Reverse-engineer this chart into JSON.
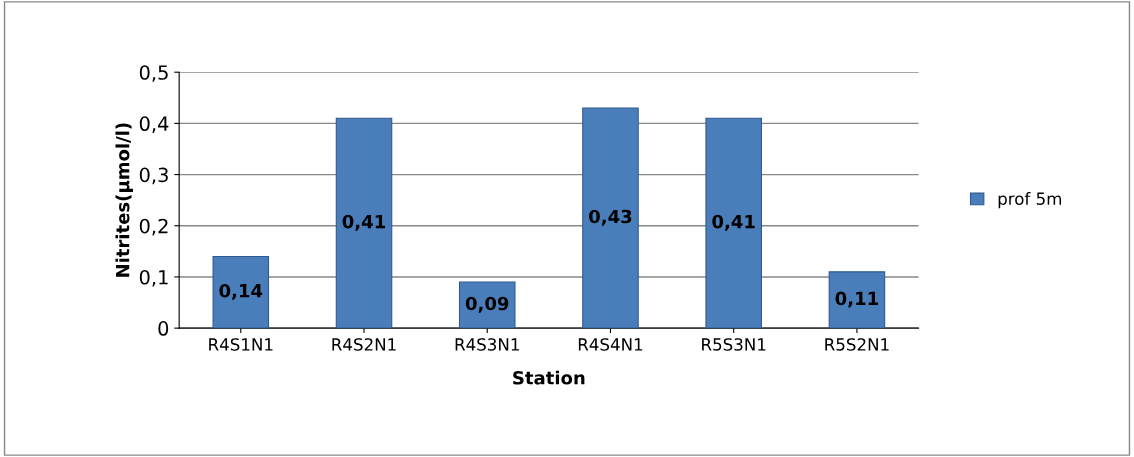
{
  "chart_data": {
    "type": "bar",
    "xlabel": "Station",
    "ylabel": "Nitrites(µmol/l)",
    "categories": [
      "R4S1N1",
      "R4S2N1",
      "R4S3N1",
      "R4S4N1",
      "R5S3N1",
      "R5S2N1"
    ],
    "series": [
      {
        "name": "prof 5m",
        "color": "#4a7ebb",
        "values": [
          0.14,
          0.41,
          0.09,
          0.43,
          0.41,
          0.11
        ],
        "value_labels": [
          "0,14",
          "0,41",
          "0,09",
          "0,43",
          "0,41",
          "0,11"
        ]
      }
    ],
    "ylim": [
      0,
      0.5
    ],
    "yticks": [
      {
        "value": 0,
        "label": "0"
      },
      {
        "value": 0.1,
        "label": "0,1"
      },
      {
        "value": 0.2,
        "label": "0,2"
      },
      {
        "value": 0.3,
        "label": "0,3"
      },
      {
        "value": 0.4,
        "label": "0,4"
      },
      {
        "value": 0.5,
        "label": "0,5"
      }
    ],
    "grid": "y",
    "legend": "right"
  }
}
